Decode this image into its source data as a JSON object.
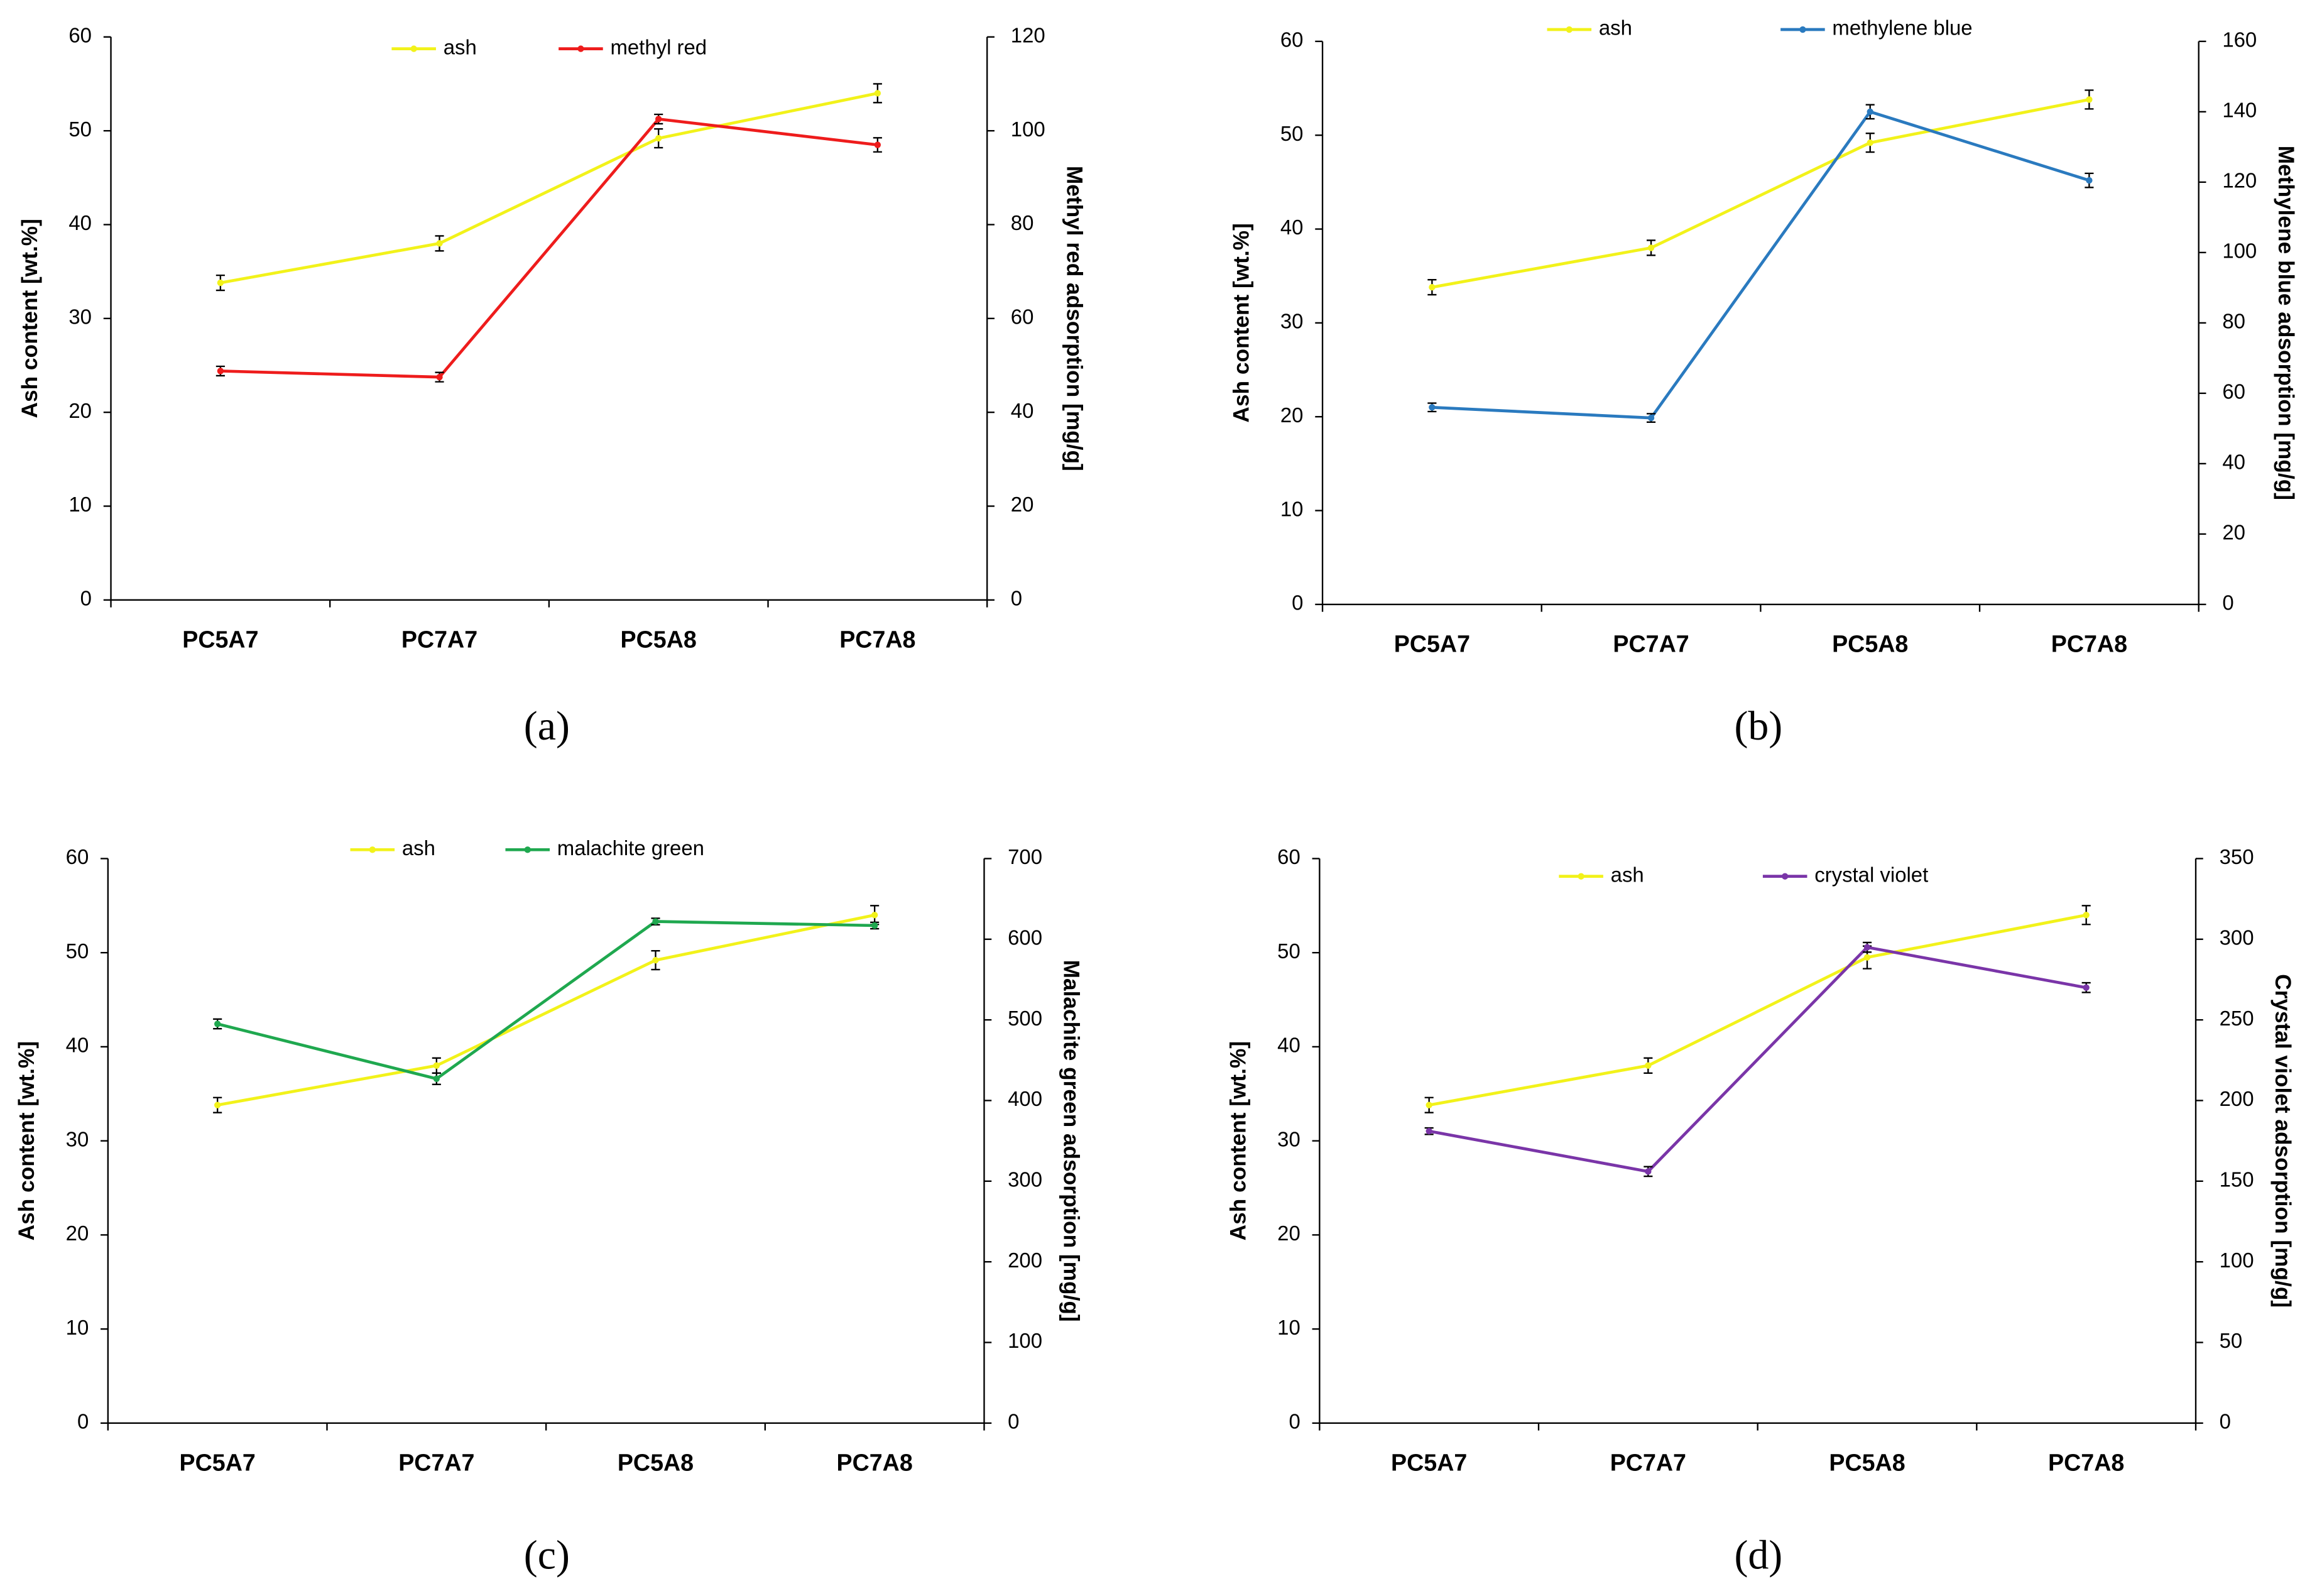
{
  "chart_data": [
    {
      "type": "line",
      "panel_label": "(a)",
      "categories": [
        "PC5A7",
        "PC7A7",
        "PC5A8",
        "PC7A8"
      ],
      "y_label": "Ash content [wt.%]",
      "y2_label": "Methyl red adsorption [mg/g]",
      "ylim": [
        0,
        60
      ],
      "yticks": [
        0,
        10,
        20,
        30,
        40,
        50,
        60
      ],
      "y2lim": [
        0,
        120
      ],
      "y2ticks": [
        0,
        20,
        40,
        60,
        80,
        100,
        120
      ],
      "legend": "top",
      "series": [
        {
          "name": "ash",
          "color": "#f2f21a",
          "values": [
            33.8,
            38.0,
            49.2,
            54.0
          ],
          "errors": [
            0.8,
            0.8,
            1.0,
            1.0
          ]
        },
        {
          "name": "methyl red",
          "color": "#ee1c1c",
          "axis": "y2",
          "values": [
            48.8,
            47.5,
            102.5,
            97.0
          ],
          "errors": [
            1.0,
            1.0,
            1.0,
            1.5
          ]
        }
      ]
    },
    {
      "type": "line",
      "panel_label": "(b)",
      "categories": [
        "PC5A7",
        "PC7A7",
        "PC5A8",
        "PC7A8"
      ],
      "y_label": "Ash content [wt.%]",
      "y2_label": "Methylene blue adsorption [mg/g]",
      "ylim": [
        0,
        60
      ],
      "yticks": [
        0,
        10,
        20,
        30,
        40,
        50,
        60
      ],
      "y2lim": [
        0,
        160
      ],
      "y2ticks": [
        0,
        20,
        40,
        60,
        80,
        100,
        120,
        140,
        160
      ],
      "legend": "top",
      "series": [
        {
          "name": "ash",
          "color": "#f2f21a",
          "values": [
            33.8,
            38.0,
            49.2,
            53.8
          ],
          "errors": [
            0.8,
            0.8,
            1.0,
            1.0
          ]
        },
        {
          "name": "methylene blue",
          "color": "#2a7abf",
          "axis": "y2",
          "values": [
            56.0,
            53.0,
            140.0,
            120.5
          ],
          "errors": [
            1.2,
            1.2,
            2.0,
            2.0
          ]
        }
      ]
    },
    {
      "type": "line",
      "panel_label": "(c)",
      "categories": [
        "PC5A7",
        "PC7A7",
        "PC5A8",
        "PC7A8"
      ],
      "y_label": "Ash content [wt.%]",
      "y2_label": "Malachite green adsorption [mg/g]",
      "ylim": [
        0,
        60
      ],
      "yticks": [
        0,
        10,
        20,
        30,
        40,
        50,
        60
      ],
      "y2lim": [
        0,
        700
      ],
      "y2ticks": [
        0,
        100,
        200,
        300,
        400,
        500,
        600,
        700
      ],
      "legend": "top",
      "series": [
        {
          "name": "ash",
          "color": "#f2f21a",
          "values": [
            33.8,
            38.0,
            49.2,
            54.0
          ],
          "errors": [
            0.8,
            0.8,
            1.0,
            1.0
          ]
        },
        {
          "name": "malachite green",
          "color": "#1fa84f",
          "axis": "y2",
          "values": [
            495,
            427,
            622,
            617
          ],
          "errors": [
            6,
            7,
            4,
            4
          ]
        }
      ]
    },
    {
      "type": "line",
      "panel_label": "(d)",
      "categories": [
        "PC5A7",
        "PC7A7",
        "PC5A8",
        "PC7A8"
      ],
      "y_label": "Ash content [wt.%]",
      "y2_label": "Crystal violet adsorption [mg/g]",
      "ylim": [
        0,
        60
      ],
      "yticks": [
        0,
        10,
        20,
        30,
        40,
        50,
        60
      ],
      "y2lim": [
        0,
        350
      ],
      "y2ticks": [
        0,
        50,
        100,
        150,
        200,
        250,
        300,
        350
      ],
      "legend": "top",
      "series": [
        {
          "name": "ash",
          "color": "#f2f21a",
          "values": [
            33.8,
            38.0,
            49.5,
            54.0
          ],
          "errors": [
            0.8,
            0.8,
            1.2,
            1.0
          ]
        },
        {
          "name": "crystal violet",
          "color": "#7a35a8",
          "axis": "y2",
          "values": [
            181,
            156,
            295,
            270
          ],
          "errors": [
            2,
            3,
            3,
            3
          ]
        }
      ]
    }
  ]
}
